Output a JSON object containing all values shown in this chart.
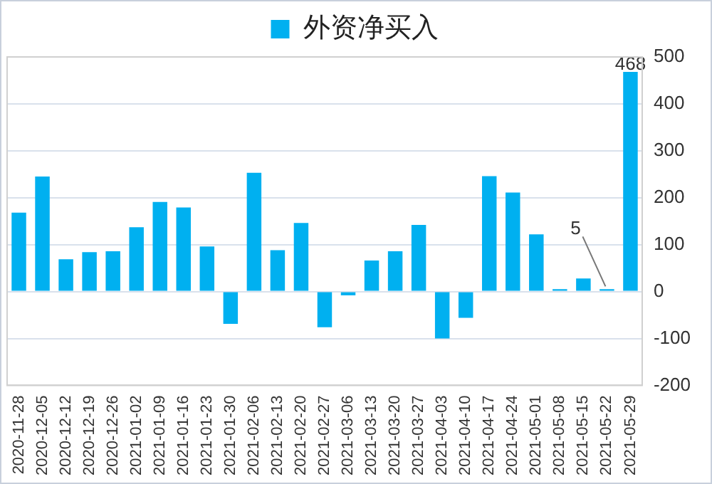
{
  "chart_data": {
    "type": "bar",
    "categories": [
      "2020-11-28",
      "2020-12-05",
      "2020-12-12",
      "2020-12-19",
      "2020-12-26",
      "2021-01-02",
      "2021-01-09",
      "2021-01-16",
      "2021-01-23",
      "2021-01-30",
      "2021-02-06",
      "2021-02-13",
      "2021-02-20",
      "2021-02-27",
      "2021-03-06",
      "2021-03-13",
      "2021-03-20",
      "2021-03-27",
      "2021-04-03",
      "2021-04-10",
      "2021-04-17",
      "2021-04-24",
      "2021-05-01",
      "2021-05-08",
      "2021-05-15",
      "2021-05-22",
      "2021-05-29"
    ],
    "series": [
      {
        "name": "外资净买入",
        "color": "#00b0f0",
        "values": [
          168,
          245,
          69,
          84,
          86,
          137,
          191,
          179,
          96,
          -69,
          253,
          88,
          146,
          -76,
          -8,
          66,
          86,
          142,
          -100,
          -56,
          246,
          211,
          122,
          5,
          28,
          5,
          468
        ],
        "value_labels": [
          null,
          null,
          null,
          null,
          null,
          null,
          null,
          null,
          null,
          null,
          null,
          null,
          null,
          null,
          null,
          null,
          null,
          null,
          null,
          null,
          null,
          null,
          null,
          null,
          null,
          "5",
          "468"
        ]
      }
    ],
    "ylim": [
      -200,
      500
    ],
    "yticks": [
      -200,
      -100,
      0,
      100,
      200,
      300,
      400,
      500
    ],
    "grid": "y",
    "legend": "top"
  }
}
